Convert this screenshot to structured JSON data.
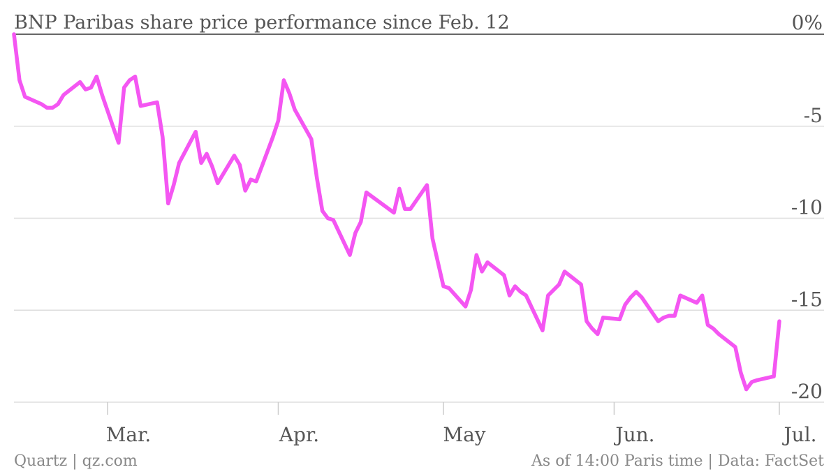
{
  "chart_data": {
    "type": "line",
    "title": "BNP Paribas share price performance since Feb. 12",
    "xlabel": "",
    "ylabel": "",
    "ylim": [
      -20,
      0
    ],
    "yticks": [
      {
        "value": 0,
        "label": "0%"
      },
      {
        "value": -5,
        "label": "-5"
      },
      {
        "value": -10,
        "label": "-10"
      },
      {
        "value": -15,
        "label": "-15"
      },
      {
        "value": -20,
        "label": "-20"
      }
    ],
    "xticks": [
      {
        "date": "2014-03-01",
        "label": "Mar."
      },
      {
        "date": "2014-04-01",
        "label": "Apr."
      },
      {
        "date": "2014-05-01",
        "label": "May"
      },
      {
        "date": "2014-06-01",
        "label": "Jun."
      },
      {
        "date": "2014-07-01",
        "label": "Jul."
      }
    ],
    "grid": true,
    "legend": "none",
    "series_color": "#f456f2",
    "series": [
      {
        "x": [
          "2014-02-12",
          "2014-02-13",
          "2014-02-14",
          "2014-02-17",
          "2014-02-18",
          "2014-02-19",
          "2014-02-20",
          "2014-02-21",
          "2014-02-24",
          "2014-02-25",
          "2014-02-26",
          "2014-02-27",
          "2014-02-28",
          "2014-03-03",
          "2014-03-04",
          "2014-03-05",
          "2014-03-06",
          "2014-03-07",
          "2014-03-10",
          "2014-03-11",
          "2014-03-12",
          "2014-03-13",
          "2014-03-14",
          "2014-03-17",
          "2014-03-18",
          "2014-03-19",
          "2014-03-20",
          "2014-03-21",
          "2014-03-24",
          "2014-03-25",
          "2014-03-26",
          "2014-03-27",
          "2014-03-28",
          "2014-03-31",
          "2014-04-01",
          "2014-04-02",
          "2014-04-03",
          "2014-04-04",
          "2014-04-07",
          "2014-04-08",
          "2014-04-09",
          "2014-04-10",
          "2014-04-11",
          "2014-04-14",
          "2014-04-15",
          "2014-04-16",
          "2014-04-17",
          "2014-04-22",
          "2014-04-23",
          "2014-04-24",
          "2014-04-25",
          "2014-04-28",
          "2014-04-29",
          "2014-04-30",
          "2014-05-01",
          "2014-05-02",
          "2014-05-05",
          "2014-05-06",
          "2014-05-07",
          "2014-05-08",
          "2014-05-09",
          "2014-05-12",
          "2014-05-13",
          "2014-05-14",
          "2014-05-15",
          "2014-05-16",
          "2014-05-19",
          "2014-05-20",
          "2014-05-21",
          "2014-05-22",
          "2014-05-23",
          "2014-05-26",
          "2014-05-27",
          "2014-05-28",
          "2014-05-29",
          "2014-05-30",
          "2014-06-02",
          "2014-06-03",
          "2014-06-04",
          "2014-06-05",
          "2014-06-06",
          "2014-06-09",
          "2014-06-10",
          "2014-06-11",
          "2014-06-12",
          "2014-06-13",
          "2014-06-16",
          "2014-06-17",
          "2014-06-18",
          "2014-06-19",
          "2014-06-20",
          "2014-06-23",
          "2014-06-24",
          "2014-06-25",
          "2014-06-26",
          "2014-06-27",
          "2014-06-30",
          "2014-07-01"
        ],
        "values": [
          0,
          -2.5,
          -3.4,
          -3.8,
          -4.0,
          -4.0,
          -3.8,
          -3.3,
          -2.6,
          -3.0,
          -2.9,
          -2.3,
          -3.3,
          -5.9,
          -2.9,
          -2.5,
          -2.3,
          -3.9,
          -3.7,
          -5.6,
          -9.2,
          -8.2,
          -7.0,
          -5.3,
          -7.0,
          -6.5,
          -7.2,
          -8.1,
          -6.6,
          -7.1,
          -8.5,
          -7.9,
          -8.0,
          -5.6,
          -4.7,
          -2.5,
          -3.2,
          -4.1,
          -5.7,
          -7.8,
          -9.6,
          -10.0,
          -10.1,
          -12.0,
          -10.8,
          -10.2,
          -8.6,
          -9.7,
          -8.4,
          -9.5,
          -9.5,
          -8.2,
          -11.1,
          -12.4,
          -13.7,
          -13.8,
          -14.8,
          -13.9,
          -12.0,
          -12.9,
          -12.4,
          -13.1,
          -14.2,
          -13.7,
          -14.0,
          -14.2,
          -16.1,
          -14.2,
          -13.9,
          -13.6,
          -12.9,
          -13.6,
          -15.6,
          -16.0,
          -16.3,
          -15.4,
          -15.5,
          -14.7,
          -14.3,
          -14.0,
          -14.3,
          -15.6,
          -15.4,
          -15.3,
          -15.3,
          -14.2,
          -14.6,
          -14.2,
          -15.8,
          -16.0,
          -16.3,
          -17.0,
          -18.4,
          -19.3,
          -18.9,
          -18.8,
          -18.6,
          -15.6
        ]
      }
    ]
  },
  "footer": {
    "source_left": "Quartz | qz.com",
    "source_right": "As of 14:00 Paris time | Data: FactSet"
  }
}
